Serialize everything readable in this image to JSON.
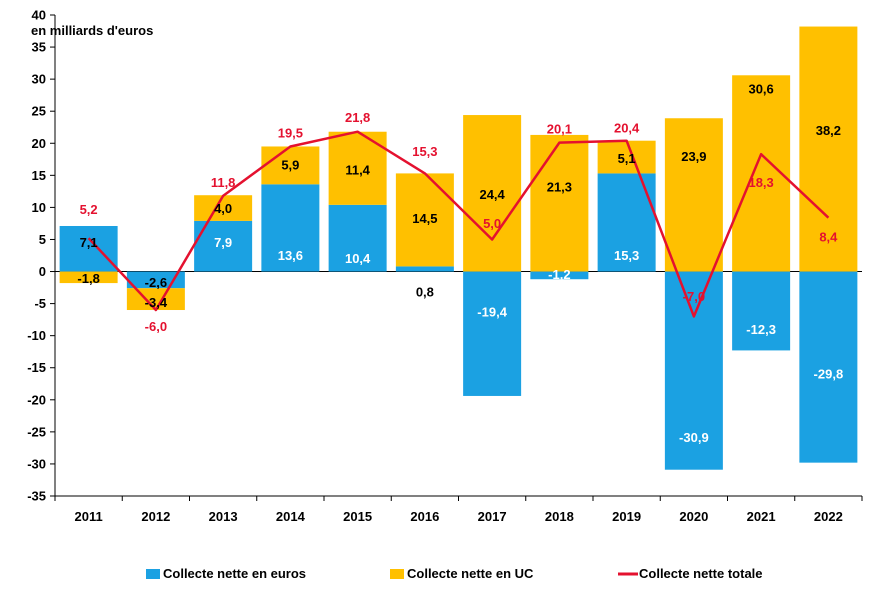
{
  "chart_data": {
    "type": "bar",
    "title": "",
    "ylabel": "en milliards d'euros",
    "xlabel": "",
    "ylim": [
      -35,
      40
    ],
    "ytick_step": 5,
    "grid": false,
    "legend_position": "bottom",
    "categories": [
      "2011",
      "2012",
      "2013",
      "2014",
      "2015",
      "2016",
      "2017",
      "2018",
      "2019",
      "2020",
      "2021",
      "2022"
    ],
    "series": [
      {
        "name": "Collecte nette en euros",
        "kind": "bar",
        "color": "#1BA1E2",
        "values": [
          7.1,
          -2.6,
          7.9,
          13.6,
          10.4,
          0.8,
          -19.4,
          -1.2,
          15.3,
          -30.9,
          -12.3,
          -29.8
        ],
        "labels": [
          "7,1",
          "-2,6",
          "7,9",
          "13,6",
          "10,4",
          "0,8",
          "-19,4",
          "-1,2",
          "15,3",
          "-30,9",
          "-12,3",
          "-29,8"
        ]
      },
      {
        "name": "Collecte nette en UC",
        "kind": "bar",
        "color": "#FFC000",
        "values": [
          -1.8,
          -3.4,
          4.0,
          5.9,
          11.4,
          14.5,
          24.4,
          21.3,
          5.1,
          23.9,
          30.6,
          38.2
        ],
        "labels": [
          "-1,8",
          "-3,4",
          "4,0",
          "5,9",
          "11,4",
          "14,5",
          "24,4",
          "21,3",
          "5,1",
          "23,9",
          "30,6",
          "38,2"
        ]
      },
      {
        "name": "Collecte nette totale",
        "kind": "line",
        "color": "#E4112F",
        "values": [
          5.2,
          -6.0,
          11.8,
          19.5,
          21.8,
          15.3,
          5.0,
          20.1,
          20.4,
          -7.0,
          18.3,
          8.4
        ],
        "labels": [
          "5,2",
          "-6,0",
          "11,8",
          "19,5",
          "21,8",
          "15,3",
          "5,0",
          "20,1",
          "20,4",
          "-7,0",
          "18,3",
          "8,4"
        ]
      }
    ]
  }
}
